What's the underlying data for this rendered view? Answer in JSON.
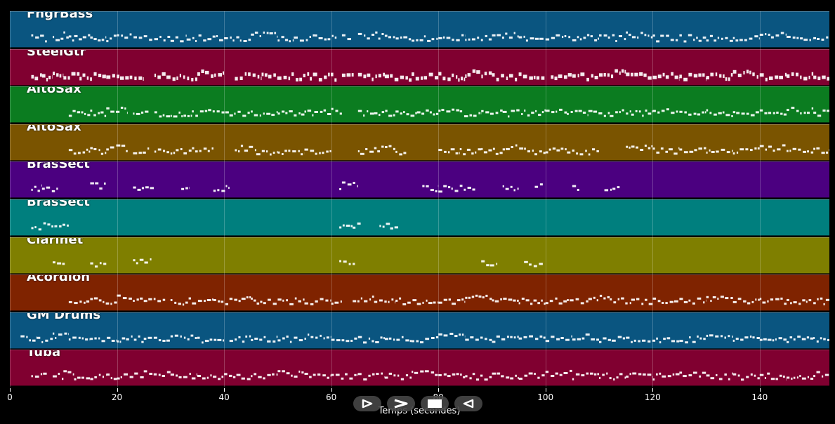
{
  "chart_data": {
    "type": "piano-roll",
    "xlabel": "Temps (secondes)",
    "xlim": [
      0,
      153
    ],
    "xticks": [
      0,
      20,
      40,
      60,
      80,
      100,
      120,
      140
    ],
    "xtick_labels": [
      "0",
      "20",
      "40",
      "60",
      "80",
      "100",
      "120",
      "140"
    ],
    "grid": true,
    "tracks": [
      {
        "name": "FngrBass",
        "color": "#0a5580",
        "segments": [
          [
            4,
            7
          ],
          [
            8,
            10
          ],
          [
            10,
            11
          ],
          [
            11,
            12
          ],
          [
            12,
            15
          ],
          [
            15,
            18
          ],
          [
            18,
            20
          ],
          [
            20,
            25
          ],
          [
            25,
            30
          ],
          [
            30,
            33
          ],
          [
            33,
            40
          ],
          [
            40,
            45
          ],
          [
            45,
            50
          ],
          [
            50,
            53
          ],
          [
            53,
            57
          ],
          [
            57,
            61
          ],
          [
            62,
            64
          ],
          [
            65,
            70
          ],
          [
            70,
            75
          ],
          [
            75,
            80
          ],
          [
            80,
            85
          ],
          [
            85,
            90
          ],
          [
            90,
            95
          ],
          [
            95,
            100
          ],
          [
            100,
            105
          ],
          [
            105,
            110
          ],
          [
            110,
            115
          ],
          [
            115,
            120
          ],
          [
            120,
            125
          ],
          [
            125,
            130
          ],
          [
            130,
            135
          ],
          [
            135,
            140
          ],
          [
            140,
            145
          ],
          [
            145,
            150
          ],
          [
            150,
            153
          ]
        ]
      },
      {
        "name": "SteelGtr",
        "color": "#800030",
        "segments": [
          [
            4,
            6
          ],
          [
            6,
            8
          ],
          [
            8,
            10
          ],
          [
            10,
            13
          ],
          [
            13,
            18
          ],
          [
            18,
            25
          ],
          [
            27,
            35
          ],
          [
            35,
            40
          ],
          [
            42,
            47
          ],
          [
            47,
            52
          ],
          [
            52,
            56
          ],
          [
            56,
            61
          ],
          [
            62,
            64.5
          ],
          [
            65,
            70
          ],
          [
            70,
            75
          ],
          [
            75,
            80
          ],
          [
            80,
            85
          ],
          [
            85,
            90
          ],
          [
            90,
            95
          ],
          [
            95,
            100
          ],
          [
            101,
            105
          ],
          [
            105,
            110
          ],
          [
            110,
            115
          ],
          [
            115,
            120
          ],
          [
            120,
            125
          ],
          [
            125,
            130
          ],
          [
            130,
            135
          ],
          [
            135,
            140
          ],
          [
            140,
            145
          ],
          [
            145,
            150
          ],
          [
            150,
            153
          ]
        ]
      },
      {
        "name": "AltoSax",
        "color": "#0b7c20",
        "segments": [
          [
            11,
            15
          ],
          [
            15,
            18
          ],
          [
            18,
            22
          ],
          [
            23,
            26
          ],
          [
            27,
            30
          ],
          [
            30,
            34
          ],
          [
            34,
            37
          ],
          [
            37,
            41
          ],
          [
            41,
            45
          ],
          [
            45,
            50
          ],
          [
            50,
            55
          ],
          [
            55,
            60
          ],
          [
            60,
            62
          ],
          [
            65,
            68
          ],
          [
            68,
            72
          ],
          [
            72,
            76
          ],
          [
            76,
            80
          ],
          [
            80,
            84
          ],
          [
            84,
            88
          ],
          [
            88,
            92
          ],
          [
            92,
            96
          ],
          [
            96,
            100
          ],
          [
            100,
            104
          ],
          [
            104,
            108
          ],
          [
            108,
            112
          ],
          [
            112,
            116
          ],
          [
            116,
            120
          ],
          [
            120,
            125
          ],
          [
            125,
            130
          ],
          [
            130,
            135
          ],
          [
            135,
            140
          ],
          [
            140,
            145
          ],
          [
            145,
            150
          ],
          [
            150,
            153
          ]
        ]
      },
      {
        "name": "AltoSax",
        "color": "#7a5400",
        "segments": [
          [
            11,
            15
          ],
          [
            15,
            18
          ],
          [
            18,
            22
          ],
          [
            23,
            26
          ],
          [
            27,
            30
          ],
          [
            30,
            34
          ],
          [
            34,
            38
          ],
          [
            42,
            46
          ],
          [
            46,
            50
          ],
          [
            50,
            55
          ],
          [
            55,
            60
          ],
          [
            65,
            68
          ],
          [
            68,
            72
          ],
          [
            72,
            74
          ],
          [
            80,
            84
          ],
          [
            84,
            88
          ],
          [
            88,
            92
          ],
          [
            92,
            96
          ],
          [
            96,
            100
          ],
          [
            100,
            104
          ],
          [
            104,
            108
          ],
          [
            108,
            110
          ],
          [
            115,
            120
          ],
          [
            120,
            125
          ],
          [
            125,
            130
          ],
          [
            130,
            135
          ],
          [
            135,
            140
          ],
          [
            140,
            145
          ],
          [
            145,
            150
          ],
          [
            150,
            153
          ]
        ]
      },
      {
        "name": "BrasSect",
        "color": "#4b0080",
        "segments": [
          [
            4,
            6
          ],
          [
            6,
            9
          ],
          [
            15,
            18
          ],
          [
            23,
            27
          ],
          [
            32,
            33.5
          ],
          [
            38,
            41
          ],
          [
            61.5,
            62
          ],
          [
            62,
            65
          ],
          [
            77,
            80
          ],
          [
            80,
            84
          ],
          [
            84,
            87
          ],
          [
            92,
            95
          ],
          [
            98,
            99.5
          ],
          [
            105,
            106.5
          ],
          [
            111,
            114
          ]
        ]
      },
      {
        "name": "BrasSect",
        "color": "#007f7e",
        "segments": [
          [
            4,
            7
          ],
          [
            7,
            8.5
          ],
          [
            8.5,
            11
          ],
          [
            61.5,
            64
          ],
          [
            64,
            65.5
          ],
          [
            69,
            71
          ],
          [
            71,
            72.5
          ]
        ]
      },
      {
        "name": "Clarinet",
        "color": "#7f7f00",
        "segments": [
          [
            8,
            10.5
          ],
          [
            15,
            18
          ],
          [
            23,
            26.5
          ],
          [
            61.5,
            64.5
          ],
          [
            88,
            91
          ],
          [
            96,
            99.5
          ]
        ]
      },
      {
        "name": "Acordion",
        "color": "#7f2300",
        "segments": [
          [
            11,
            15
          ],
          [
            15,
            20
          ],
          [
            20,
            25
          ],
          [
            25,
            29
          ],
          [
            30,
            34
          ],
          [
            34,
            38
          ],
          [
            38,
            41
          ],
          [
            41,
            45
          ],
          [
            45,
            50
          ],
          [
            50,
            55
          ],
          [
            55,
            60
          ],
          [
            60,
            62
          ],
          [
            64,
            68
          ],
          [
            68,
            72
          ],
          [
            72,
            76
          ],
          [
            76,
            80
          ],
          [
            80,
            85
          ],
          [
            85,
            90
          ],
          [
            90,
            95
          ],
          [
            95,
            100
          ],
          [
            100,
            104
          ],
          [
            104,
            108
          ],
          [
            108,
            112
          ],
          [
            112,
            116
          ],
          [
            116,
            120
          ],
          [
            120,
            125
          ],
          [
            125,
            130
          ],
          [
            130,
            135
          ],
          [
            135,
            140
          ],
          [
            140,
            145
          ],
          [
            145,
            150
          ],
          [
            150,
            153
          ]
        ]
      },
      {
        "name": "GM Drums",
        "color": "#0a5580",
        "segments": [
          [
            2,
            5
          ],
          [
            5,
            8
          ],
          [
            8,
            11
          ],
          [
            11,
            15
          ],
          [
            15,
            20
          ],
          [
            20,
            25
          ],
          [
            25,
            30
          ],
          [
            30,
            35
          ],
          [
            35,
            40
          ],
          [
            41,
            45
          ],
          [
            45,
            50
          ],
          [
            50,
            55
          ],
          [
            55,
            60
          ],
          [
            60,
            65
          ],
          [
            65,
            70
          ],
          [
            70,
            75
          ],
          [
            75,
            80
          ],
          [
            80,
            85
          ],
          [
            85,
            90
          ],
          [
            90,
            95
          ],
          [
            95,
            100
          ],
          [
            100,
            105
          ],
          [
            105,
            110
          ],
          [
            110,
            115
          ],
          [
            115,
            120
          ],
          [
            120,
            125
          ],
          [
            125,
            130
          ],
          [
            130,
            135
          ],
          [
            135,
            140
          ],
          [
            140,
            145
          ],
          [
            145,
            150
          ],
          [
            150,
            153
          ]
        ]
      },
      {
        "name": "Tuba",
        "color": "#800030",
        "segments": [
          [
            4,
            7
          ],
          [
            8,
            10
          ],
          [
            10,
            12
          ],
          [
            12,
            15
          ],
          [
            15,
            18
          ],
          [
            18,
            20
          ],
          [
            20,
            25
          ],
          [
            25,
            30
          ],
          [
            30,
            35
          ],
          [
            35,
            40
          ],
          [
            40,
            45
          ],
          [
            45,
            50
          ],
          [
            50,
            55
          ],
          [
            55,
            60
          ],
          [
            60,
            65
          ],
          [
            65,
            70
          ],
          [
            70,
            75
          ],
          [
            75,
            80
          ],
          [
            80,
            85
          ],
          [
            85,
            90
          ],
          [
            90,
            95
          ],
          [
            95,
            100
          ],
          [
            100,
            105
          ],
          [
            105,
            110
          ],
          [
            110,
            115
          ],
          [
            115,
            120
          ],
          [
            120,
            125
          ],
          [
            125,
            130
          ],
          [
            130,
            135
          ],
          [
            135,
            140
          ],
          [
            140,
            145
          ],
          [
            145,
            150
          ],
          [
            150,
            153
          ]
        ]
      }
    ]
  },
  "controls": [
    {
      "name": "play",
      "icon": "play-icon"
    },
    {
      "name": "forward",
      "icon": "chevron-right-icon"
    },
    {
      "name": "stop",
      "icon": "stop-icon"
    },
    {
      "name": "rewind",
      "icon": "triangle-left-icon"
    }
  ]
}
